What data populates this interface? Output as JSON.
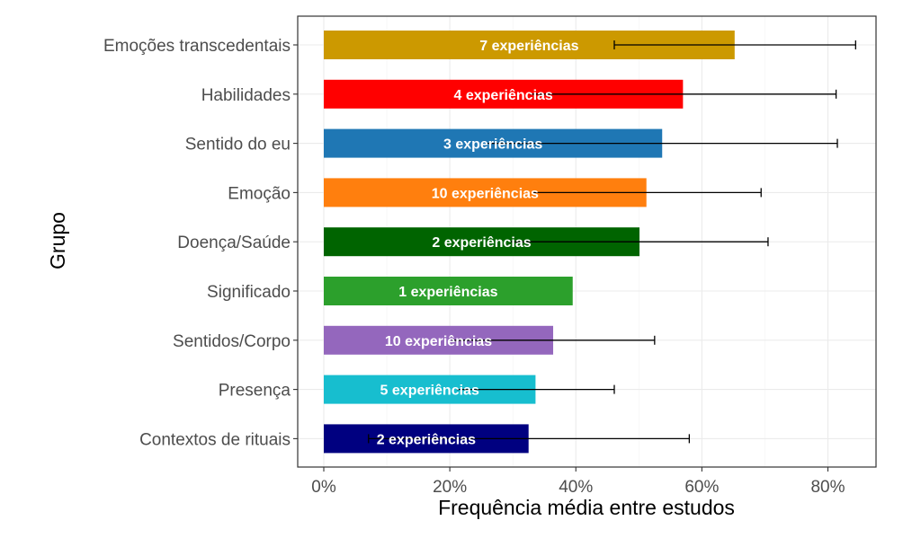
{
  "chart_data": {
    "type": "bar",
    "orientation": "horizontal",
    "xlabel": "Frequência média entre estudos",
    "ylabel": "Grupo",
    "xlim": [
      0,
      0.88
    ],
    "xticks": [
      0,
      0.2,
      0.4,
      0.6,
      0.8
    ],
    "xtick_labels": [
      "0%",
      "20%",
      "40%",
      "60%",
      "80%"
    ],
    "grid": true,
    "legend": "none",
    "categories": [
      "Emoções transcedentais",
      "Habilidades",
      "Sentido do eu",
      "Emoção",
      "Doença/Saúde",
      "Significado",
      "Sentidos/Corpo",
      "Presença",
      "Contextos de rituais"
    ],
    "values": [
      0.652,
      0.57,
      0.537,
      0.512,
      0.501,
      0.395,
      0.364,
      0.336,
      0.325
    ],
    "error_low": [
      0.461,
      null,
      null,
      null,
      null,
      null,
      null,
      null,
      0.071
    ],
    "error_high": [
      0.844,
      0.813,
      0.815,
      0.694,
      0.705,
      null,
      0.525,
      0.461,
      0.58
    ],
    "bar_labels": [
      "7 experiências",
      "4 experiências",
      "3 experiências",
      "10 experiências",
      "2 experiências",
      "1 experiências",
      "10 experiências",
      "5 experiências",
      "2 experiências"
    ],
    "colors": [
      "#CC9900",
      "#FF0000",
      "#1F77B4",
      "#FF7F0E",
      "#006400",
      "#2CA02C",
      "#9467BD",
      "#17BECF",
      "#000080"
    ]
  }
}
